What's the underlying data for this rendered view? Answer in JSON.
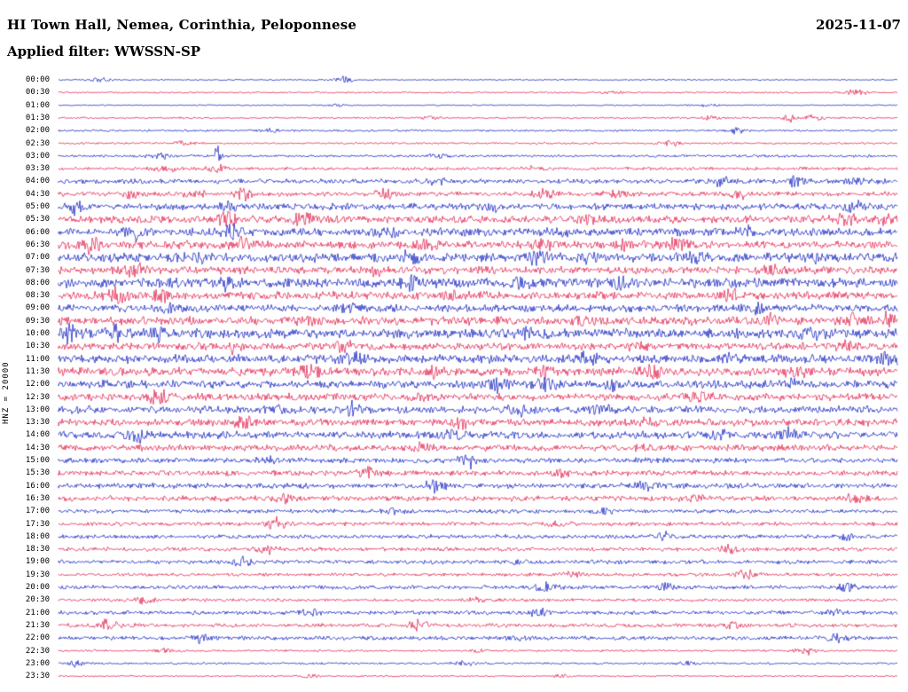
{
  "header": {
    "title": "HI Town Hall, Nemea, Corinthia, Peloponnese",
    "date": "2025-11-07",
    "filter_label": "Applied filter: WWSSN-SP"
  },
  "y_axis_label": "HNZ = 20000",
  "colors": {
    "trace_blue": "#0011bb",
    "trace_red": "#e01040",
    "text": "#000000",
    "background": "#ffffff"
  },
  "chart_data": {
    "type": "line",
    "subtype": "helicorder-seismogram",
    "title": "HI Town Hall, Nemea, Corinthia, Peloponnese",
    "date": "2025-11-07",
    "filter": "WWSSN-SP",
    "channel_scale": "HNZ = 20000",
    "minutes_per_row": 30,
    "row_color_pattern": [
      "blue",
      "red"
    ],
    "legend": "none",
    "grid": false,
    "rows": [
      {
        "time": "00:00",
        "color": "blue",
        "base": 0.05,
        "events": [
          [
            0.05,
            0.22
          ],
          [
            0.34,
            0.28
          ]
        ]
      },
      {
        "time": "00:30",
        "color": "red",
        "base": 0.06,
        "events": [
          [
            0.66,
            0.15
          ],
          [
            0.95,
            0.33
          ]
        ]
      },
      {
        "time": "01:00",
        "color": "blue",
        "base": 0.05,
        "events": [
          [
            0.33,
            0.15
          ],
          [
            0.77,
            0.12
          ]
        ]
      },
      {
        "time": "01:30",
        "color": "red",
        "base": 0.07,
        "events": [
          [
            0.44,
            0.18
          ],
          [
            0.78,
            0.25
          ],
          [
            0.87,
            0.5,
            0.006
          ],
          [
            0.9,
            0.3
          ]
        ]
      },
      {
        "time": "02:00",
        "color": "blue",
        "base": 0.08,
        "events": [
          [
            0.25,
            0.15
          ],
          [
            0.81,
            0.45,
            0.008
          ]
        ]
      },
      {
        "time": "02:30",
        "color": "red",
        "base": 0.08,
        "events": [
          [
            0.15,
            0.28
          ],
          [
            0.73,
            0.28
          ]
        ]
      },
      {
        "time": "03:00",
        "color": "blue",
        "base": 0.1,
        "events": [
          [
            0.12,
            0.3
          ],
          [
            0.19,
            1.6,
            0.003
          ],
          [
            0.45,
            0.2
          ]
        ]
      },
      {
        "time": "03:30",
        "color": "red",
        "base": 0.12,
        "events": [
          [
            0.13,
            0.45
          ],
          [
            0.19,
            0.35
          ],
          [
            0.56,
            0.2
          ]
        ]
      },
      {
        "time": "04:00",
        "color": "blue",
        "base": 0.18,
        "events": [
          [
            0.45,
            0.3
          ],
          [
            0.79,
            0.5
          ],
          [
            0.88,
            0.55
          ],
          [
            0.95,
            0.35
          ]
        ]
      },
      {
        "time": "04:30",
        "color": "red",
        "base": 0.18,
        "events": [
          [
            0.09,
            0.5
          ],
          [
            0.16,
            0.45
          ],
          [
            0.22,
            0.5
          ],
          [
            0.39,
            0.35
          ],
          [
            0.58,
            0.45
          ],
          [
            0.66,
            0.4
          ],
          [
            0.81,
            0.4
          ]
        ]
      },
      {
        "time": "05:00",
        "color": "blue",
        "base": 0.25,
        "events": [
          [
            0.02,
            0.6
          ],
          [
            0.2,
            0.35
          ],
          [
            0.52,
            0.3
          ],
          [
            0.95,
            0.45
          ]
        ]
      },
      {
        "time": "05:30",
        "color": "red",
        "base": 0.28,
        "events": [
          [
            0.2,
            0.55
          ],
          [
            0.29,
            0.65
          ],
          [
            0.63,
            0.35
          ],
          [
            0.94,
            0.5
          ],
          [
            0.99,
            0.5
          ]
        ]
      },
      {
        "time": "06:00",
        "color": "blue",
        "base": 0.3,
        "events": [
          [
            0.09,
            0.5
          ],
          [
            0.21,
            0.6
          ],
          [
            0.39,
            0.5
          ],
          [
            0.6,
            0.35
          ],
          [
            0.82,
            0.45
          ]
        ]
      },
      {
        "time": "06:30",
        "color": "red",
        "base": 0.3,
        "events": [
          [
            0.04,
            0.65
          ],
          [
            0.22,
            0.55
          ],
          [
            0.44,
            0.4
          ],
          [
            0.58,
            0.5
          ],
          [
            0.67,
            0.55
          ],
          [
            0.74,
            0.55
          ]
        ]
      },
      {
        "time": "07:00",
        "color": "blue",
        "base": 0.35,
        "events": [
          [
            0.17,
            0.4
          ],
          [
            0.42,
            0.4
          ],
          [
            0.57,
            0.5
          ],
          [
            0.63,
            0.45
          ],
          [
            0.76,
            0.45
          ],
          [
            0.9,
            0.4
          ]
        ]
      },
      {
        "time": "07:30",
        "color": "red",
        "base": 0.28,
        "events": [
          [
            0.09,
            0.65
          ],
          [
            0.38,
            0.4
          ],
          [
            0.5,
            0.35
          ],
          [
            0.85,
            0.35
          ]
        ]
      },
      {
        "time": "08:00",
        "color": "blue",
        "base": 0.35,
        "events": [
          [
            0.2,
            0.5
          ],
          [
            0.42,
            0.75
          ],
          [
            0.55,
            0.4
          ],
          [
            0.67,
            0.4
          ]
        ]
      },
      {
        "time": "08:30",
        "color": "red",
        "base": 0.3,
        "events": [
          [
            0.07,
            0.55
          ],
          [
            0.12,
            0.55
          ],
          [
            0.47,
            0.35
          ],
          [
            0.8,
            0.4
          ]
        ]
      },
      {
        "time": "09:00",
        "color": "blue",
        "base": 0.28,
        "events": [
          [
            0.13,
            0.55
          ],
          [
            0.35,
            0.3
          ],
          [
            0.83,
            0.4
          ]
        ]
      },
      {
        "time": "09:30",
        "color": "red",
        "base": 0.32,
        "events": [
          [
            0.3,
            0.35
          ],
          [
            0.62,
            0.35
          ],
          [
            0.85,
            0.45
          ],
          [
            0.95,
            0.65
          ],
          [
            0.99,
            0.55
          ]
        ]
      },
      {
        "time": "10:00",
        "color": "blue",
        "base": 0.38,
        "events": [
          [
            0.01,
            0.75
          ],
          [
            0.07,
            0.6
          ],
          [
            0.12,
            0.55
          ],
          [
            0.56,
            0.4
          ],
          [
            0.9,
            0.45
          ]
        ]
      },
      {
        "time": "10:30",
        "color": "red",
        "base": 0.28,
        "events": [
          [
            0.21,
            0.5
          ],
          [
            0.34,
            0.55
          ],
          [
            0.69,
            0.35
          ],
          [
            0.94,
            0.4
          ]
        ]
      },
      {
        "time": "11:00",
        "color": "blue",
        "base": 0.33,
        "events": [
          [
            0.35,
            0.45
          ],
          [
            0.63,
            0.55
          ],
          [
            0.8,
            0.4
          ],
          [
            0.99,
            0.65
          ]
        ]
      },
      {
        "time": "11:30",
        "color": "red",
        "base": 0.33,
        "events": [
          [
            0.3,
            0.55
          ],
          [
            0.45,
            0.55
          ],
          [
            0.58,
            0.45
          ],
          [
            0.71,
            0.55
          ],
          [
            0.88,
            0.4
          ]
        ]
      },
      {
        "time": "12:00",
        "color": "blue",
        "base": 0.3,
        "events": [
          [
            0.52,
            0.55
          ],
          [
            0.58,
            0.55
          ],
          [
            0.66,
            0.45
          ],
          [
            0.87,
            0.45
          ]
        ]
      },
      {
        "time": "12:30",
        "color": "red",
        "base": 0.28,
        "events": [
          [
            0.12,
            0.7
          ],
          [
            0.43,
            0.35
          ],
          [
            0.76,
            0.45
          ]
        ]
      },
      {
        "time": "13:00",
        "color": "blue",
        "base": 0.28,
        "events": [
          [
            0.26,
            0.45
          ],
          [
            0.35,
            0.95,
            0.007
          ],
          [
            0.55,
            0.4
          ],
          [
            0.65,
            0.35
          ]
        ]
      },
      {
        "time": "13:30",
        "color": "red",
        "base": 0.28,
        "events": [
          [
            0.22,
            0.55
          ],
          [
            0.48,
            0.4
          ],
          [
            0.7,
            0.3
          ]
        ]
      },
      {
        "time": "14:00",
        "color": "blue",
        "base": 0.28,
        "events": [
          [
            0.09,
            0.6
          ],
          [
            0.47,
            0.4
          ],
          [
            0.79,
            0.45
          ],
          [
            0.87,
            0.45
          ]
        ]
      },
      {
        "time": "14:30",
        "color": "red",
        "base": 0.24,
        "events": [
          [
            0.43,
            0.55
          ],
          [
            0.7,
            0.3
          ]
        ]
      },
      {
        "time": "15:00",
        "color": "blue",
        "base": 0.2,
        "events": [
          [
            0.25,
            0.3
          ],
          [
            0.49,
            0.55
          ]
        ]
      },
      {
        "time": "15:30",
        "color": "red",
        "base": 0.2,
        "events": [
          [
            0.37,
            0.6
          ],
          [
            0.6,
            0.3
          ]
        ]
      },
      {
        "time": "16:00",
        "color": "blue",
        "base": 0.2,
        "events": [
          [
            0.45,
            0.6
          ],
          [
            0.7,
            0.45
          ]
        ]
      },
      {
        "time": "16:30",
        "color": "red",
        "base": 0.2,
        "events": [
          [
            0.27,
            0.4
          ],
          [
            0.76,
            0.4
          ],
          [
            0.95,
            0.4
          ]
        ]
      },
      {
        "time": "17:00",
        "color": "blue",
        "base": 0.15,
        "events": [
          [
            0.4,
            0.25
          ],
          [
            0.65,
            0.25
          ]
        ]
      },
      {
        "time": "17:30",
        "color": "red",
        "base": 0.15,
        "events": [
          [
            0.26,
            0.55
          ],
          [
            0.6,
            0.25
          ]
        ]
      },
      {
        "time": "18:00",
        "color": "blue",
        "base": 0.15,
        "events": [
          [
            0.72,
            0.4
          ],
          [
            0.94,
            0.4
          ]
        ]
      },
      {
        "time": "18:30",
        "color": "red",
        "base": 0.15,
        "events": [
          [
            0.25,
            0.4
          ],
          [
            0.8,
            0.4
          ]
        ]
      },
      {
        "time": "19:00",
        "color": "blue",
        "base": 0.15,
        "events": [
          [
            0.22,
            0.4
          ],
          [
            0.55,
            0.25
          ]
        ]
      },
      {
        "time": "19:30",
        "color": "red",
        "base": 0.12,
        "events": [
          [
            0.61,
            0.3
          ],
          [
            0.82,
            0.5
          ]
        ]
      },
      {
        "time": "20:00",
        "color": "blue",
        "base": 0.15,
        "events": [
          [
            0.58,
            0.55
          ],
          [
            0.72,
            0.3
          ],
          [
            0.94,
            0.4
          ]
        ]
      },
      {
        "time": "20:30",
        "color": "red",
        "base": 0.12,
        "events": [
          [
            0.1,
            0.35
          ],
          [
            0.5,
            0.2
          ]
        ]
      },
      {
        "time": "21:00",
        "color": "blue",
        "base": 0.15,
        "events": [
          [
            0.3,
            0.4
          ],
          [
            0.57,
            0.4
          ],
          [
            0.93,
            0.4
          ]
        ]
      },
      {
        "time": "21:30",
        "color": "red",
        "base": 0.15,
        "events": [
          [
            0.06,
            0.5
          ],
          [
            0.43,
            0.55
          ],
          [
            0.8,
            0.3
          ]
        ]
      },
      {
        "time": "22:00",
        "color": "blue",
        "base": 0.15,
        "events": [
          [
            0.17,
            0.4
          ],
          [
            0.55,
            0.25
          ],
          [
            0.93,
            0.4
          ]
        ]
      },
      {
        "time": "22:30",
        "color": "red",
        "base": 0.08,
        "events": [
          [
            0.13,
            0.3
          ],
          [
            0.5,
            0.2
          ],
          [
            0.89,
            0.4
          ]
        ]
      },
      {
        "time": "23:00",
        "color": "blue",
        "base": 0.08,
        "events": [
          [
            0.02,
            0.3
          ],
          [
            0.48,
            0.3
          ],
          [
            0.75,
            0.2
          ]
        ]
      },
      {
        "time": "23:30",
        "color": "red",
        "base": 0.06,
        "events": [
          [
            0.3,
            0.15
          ],
          [
            0.6,
            0.15
          ]
        ]
      }
    ]
  }
}
